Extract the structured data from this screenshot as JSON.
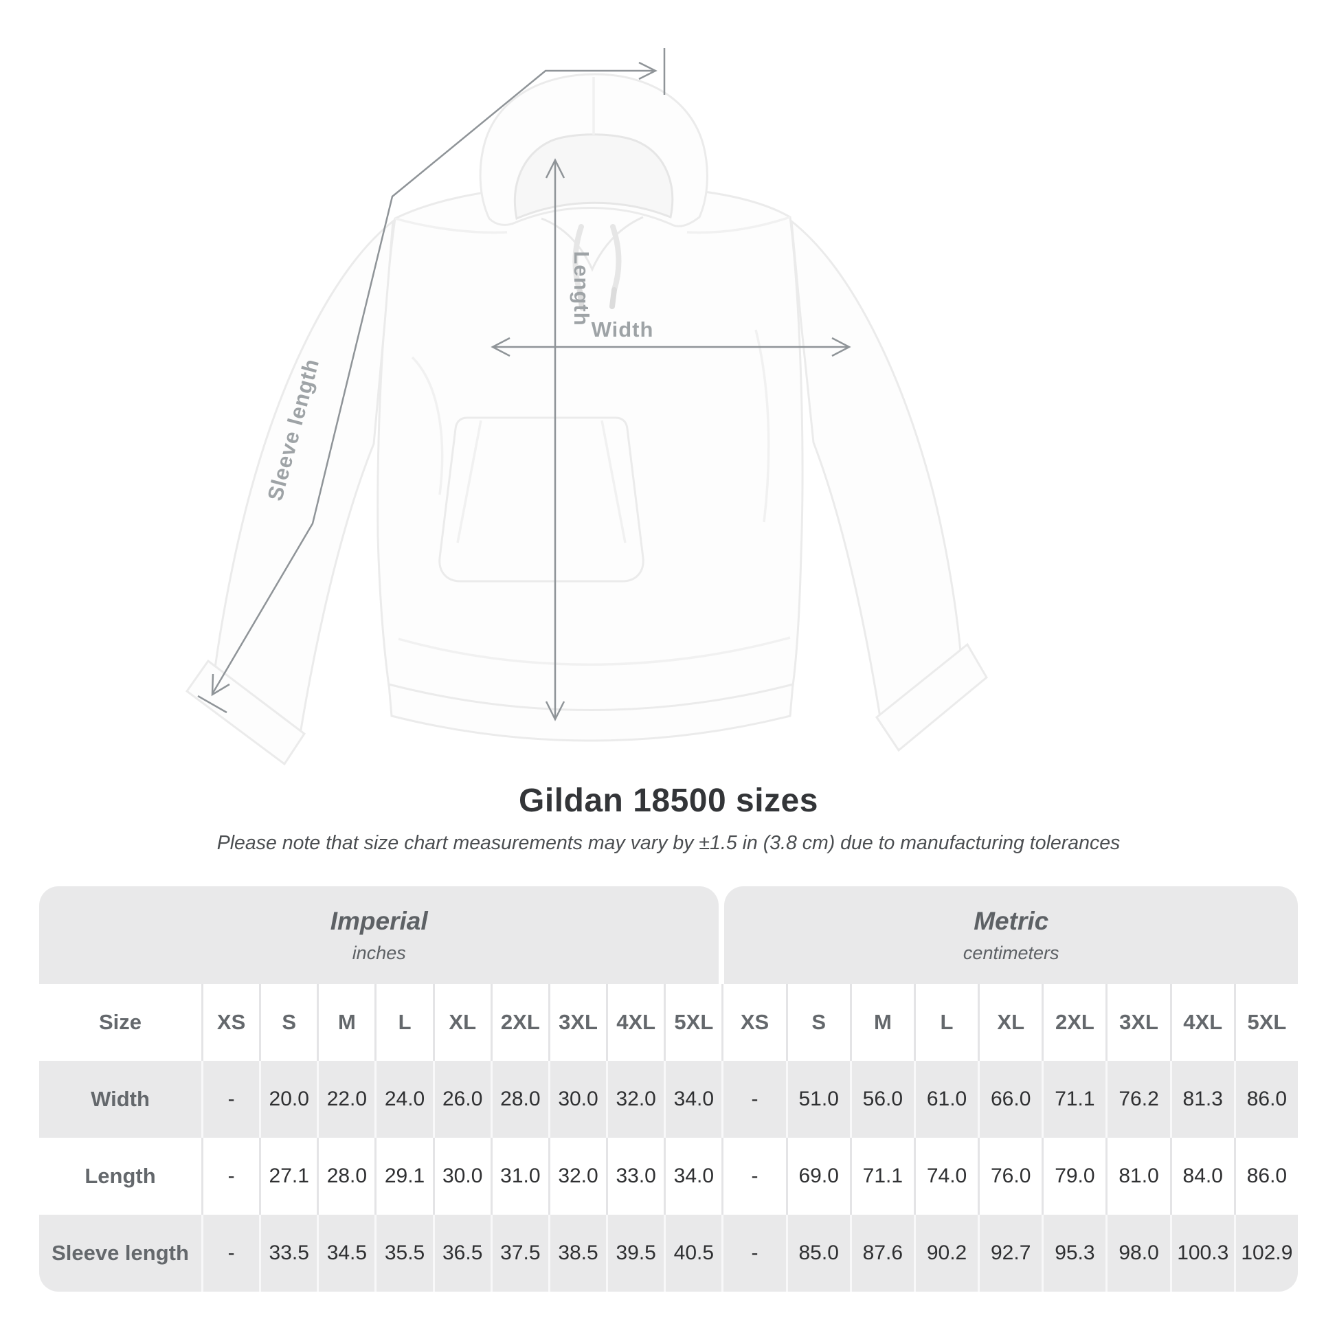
{
  "title": "Gildan 18500 sizes",
  "subtitle": "Please note that size chart measurements may vary by ±1.5 in (3.8 cm) due to manufacturing tolerances",
  "diagram": {
    "length_label": "Length",
    "width_label": "Width",
    "sleeve_label": "Sleeve length"
  },
  "table": {
    "size_label": "Size",
    "sections": [
      {
        "label": "Imperial",
        "unit": "inches"
      },
      {
        "label": "Metric",
        "unit": "centimeters"
      }
    ]
  },
  "chart_data": {
    "type": "table",
    "title": "Gildan 18500 sizes",
    "tolerance_note": "±1.5 in (3.8 cm)",
    "columns": [
      "XS",
      "S",
      "M",
      "L",
      "XL",
      "2XL",
      "3XL",
      "4XL",
      "5XL"
    ],
    "units": {
      "imperial": "inches",
      "metric": "centimeters"
    },
    "rows": [
      {
        "label": "Width",
        "imperial": [
          "-",
          "20.0",
          "22.0",
          "24.0",
          "26.0",
          "28.0",
          "30.0",
          "32.0",
          "34.0"
        ],
        "metric": [
          "-",
          "51.0",
          "56.0",
          "61.0",
          "66.0",
          "71.1",
          "76.2",
          "81.3",
          "86.0"
        ]
      },
      {
        "label": "Length",
        "imperial": [
          "-",
          "27.1",
          "28.0",
          "29.1",
          "30.0",
          "31.0",
          "32.0",
          "33.0",
          "34.0"
        ],
        "metric": [
          "-",
          "69.0",
          "71.1",
          "74.0",
          "76.0",
          "79.0",
          "81.0",
          "84.0",
          "86.0"
        ]
      },
      {
        "label": "Sleeve length",
        "imperial": [
          "-",
          "33.5",
          "34.5",
          "35.5",
          "36.5",
          "37.5",
          "38.5",
          "39.5",
          "40.5"
        ],
        "metric": [
          "-",
          "85.0",
          "87.6",
          "90.2",
          "92.7",
          "95.3",
          "98.0",
          "100.3",
          "102.9"
        ]
      }
    ]
  },
  "colors": {
    "row_gray": "#e9e9ea",
    "header_text": "#5d6165",
    "label_text": "#64686c",
    "value_text": "#2f3032",
    "measure_line": "#8f9498",
    "measure_label": "#9ea3a6"
  }
}
